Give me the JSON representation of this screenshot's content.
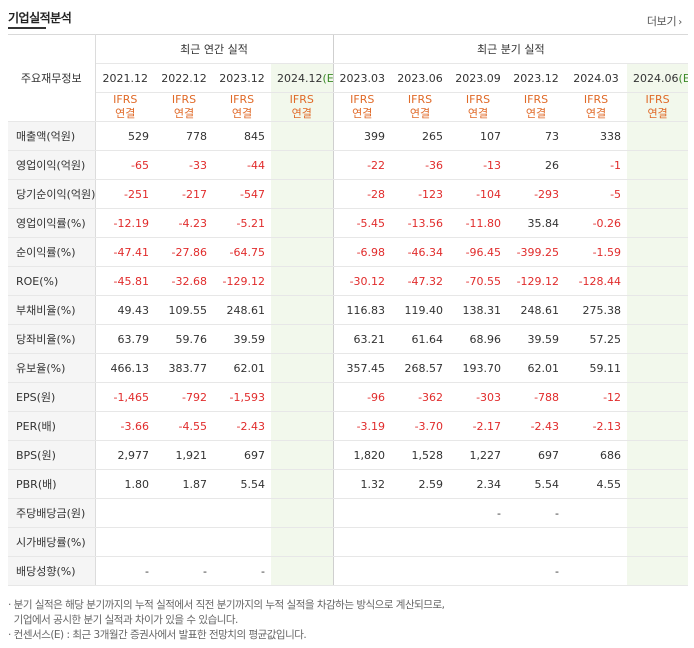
{
  "title": "기업실적분석",
  "more_label": "더보기",
  "header": {
    "row_label": "주요재무정보",
    "annual_label": "최근 연간 실적",
    "quarterly_label": "최근 분기 실적",
    "annual_periods": [
      "2021.12",
      "2022.12",
      "2023.12",
      "2024.12(E)"
    ],
    "quarter_periods": [
      "2023.03",
      "2023.06",
      "2023.09",
      "2023.12",
      "2024.03",
      "2024.06(E)"
    ],
    "basis_line1": "IFRS",
    "basis_line2": "연결"
  },
  "rows": [
    {
      "label": "매출액(억원)",
      "annual": [
        "529",
        "778",
        "845",
        ""
      ],
      "quarter": [
        "399",
        "265",
        "107",
        "73",
        "338",
        ""
      ]
    },
    {
      "label": "영업이익(억원)",
      "annual": [
        "-65",
        "-33",
        "-44",
        ""
      ],
      "quarter": [
        "-22",
        "-36",
        "-13",
        "26",
        "-1",
        ""
      ]
    },
    {
      "label": "당기순이익(억원)",
      "annual": [
        "-251",
        "-217",
        "-547",
        ""
      ],
      "quarter": [
        "-28",
        "-123",
        "-104",
        "-293",
        "-5",
        ""
      ]
    },
    {
      "label": "영업이익률(%)",
      "annual": [
        "-12.19",
        "-4.23",
        "-5.21",
        ""
      ],
      "quarter": [
        "-5.45",
        "-13.56",
        "-11.80",
        "35.84",
        "-0.26",
        ""
      ]
    },
    {
      "label": "순이익률(%)",
      "annual": [
        "-47.41",
        "-27.86",
        "-64.75",
        ""
      ],
      "quarter": [
        "-6.98",
        "-46.34",
        "-96.45",
        "-399.25",
        "-1.59",
        ""
      ]
    },
    {
      "label": "ROE(%)",
      "annual": [
        "-45.81",
        "-32.68",
        "-129.12",
        ""
      ],
      "quarter": [
        "-30.12",
        "-47.32",
        "-70.55",
        "-129.12",
        "-128.44",
        ""
      ]
    },
    {
      "label": "부채비율(%)",
      "annual": [
        "49.43",
        "109.55",
        "248.61",
        ""
      ],
      "quarter": [
        "116.83",
        "119.40",
        "138.31",
        "248.61",
        "275.38",
        ""
      ]
    },
    {
      "label": "당좌비율(%)",
      "annual": [
        "63.79",
        "59.76",
        "39.59",
        ""
      ],
      "quarter": [
        "63.21",
        "61.64",
        "68.96",
        "39.59",
        "57.25",
        ""
      ]
    },
    {
      "label": "유보율(%)",
      "annual": [
        "466.13",
        "383.77",
        "62.01",
        ""
      ],
      "quarter": [
        "357.45",
        "268.57",
        "193.70",
        "62.01",
        "59.11",
        ""
      ]
    },
    {
      "label": "EPS(원)",
      "annual": [
        "-1,465",
        "-792",
        "-1,593",
        ""
      ],
      "quarter": [
        "-96",
        "-362",
        "-303",
        "-788",
        "-12",
        ""
      ]
    },
    {
      "label": "PER(배)",
      "annual": [
        "-3.66",
        "-4.55",
        "-2.43",
        ""
      ],
      "quarter": [
        "-3.19",
        "-3.70",
        "-2.17",
        "-2.43",
        "-2.13",
        ""
      ]
    },
    {
      "label": "BPS(원)",
      "annual": [
        "2,977",
        "1,921",
        "697",
        ""
      ],
      "quarter": [
        "1,820",
        "1,528",
        "1,227",
        "697",
        "686",
        ""
      ]
    },
    {
      "label": "PBR(배)",
      "annual": [
        "1.80",
        "1.87",
        "5.54",
        ""
      ],
      "quarter": [
        "1.32",
        "2.59",
        "2.34",
        "5.54",
        "4.55",
        ""
      ]
    },
    {
      "label": "주당배당금(원)",
      "annual": [
        "",
        "",
        "",
        ""
      ],
      "quarter": [
        "",
        "",
        "-",
        "-",
        "",
        ""
      ]
    },
    {
      "label": "시가배당률(%)",
      "annual": [
        "",
        "",
        "",
        ""
      ],
      "quarter": [
        "",
        "",
        "",
        "",
        "",
        ""
      ]
    },
    {
      "label": "배당성향(%)",
      "annual": [
        "-",
        "-",
        "-",
        ""
      ],
      "quarter": [
        "",
        "",
        "",
        "-",
        "",
        ""
      ]
    }
  ],
  "notes": [
    "· 분기 실적은 해당 분기까지의 누적 실적에서 직전 분기까지의 누적 실적을 차감하는 방식으로 계산되므로,",
    "  기업에서 공시한 분기 실적과 차이가 있을 수 있습니다.",
    "· 컨센서스(E) : 최근 3개월간 증권사에서 발표한 전망치의 평균값입니다."
  ],
  "colors": {
    "negative": "#e12c2c",
    "ifrs": "#e06a28",
    "estimate": "#3b8a28",
    "estimate_bg": "#f2f8ec"
  }
}
